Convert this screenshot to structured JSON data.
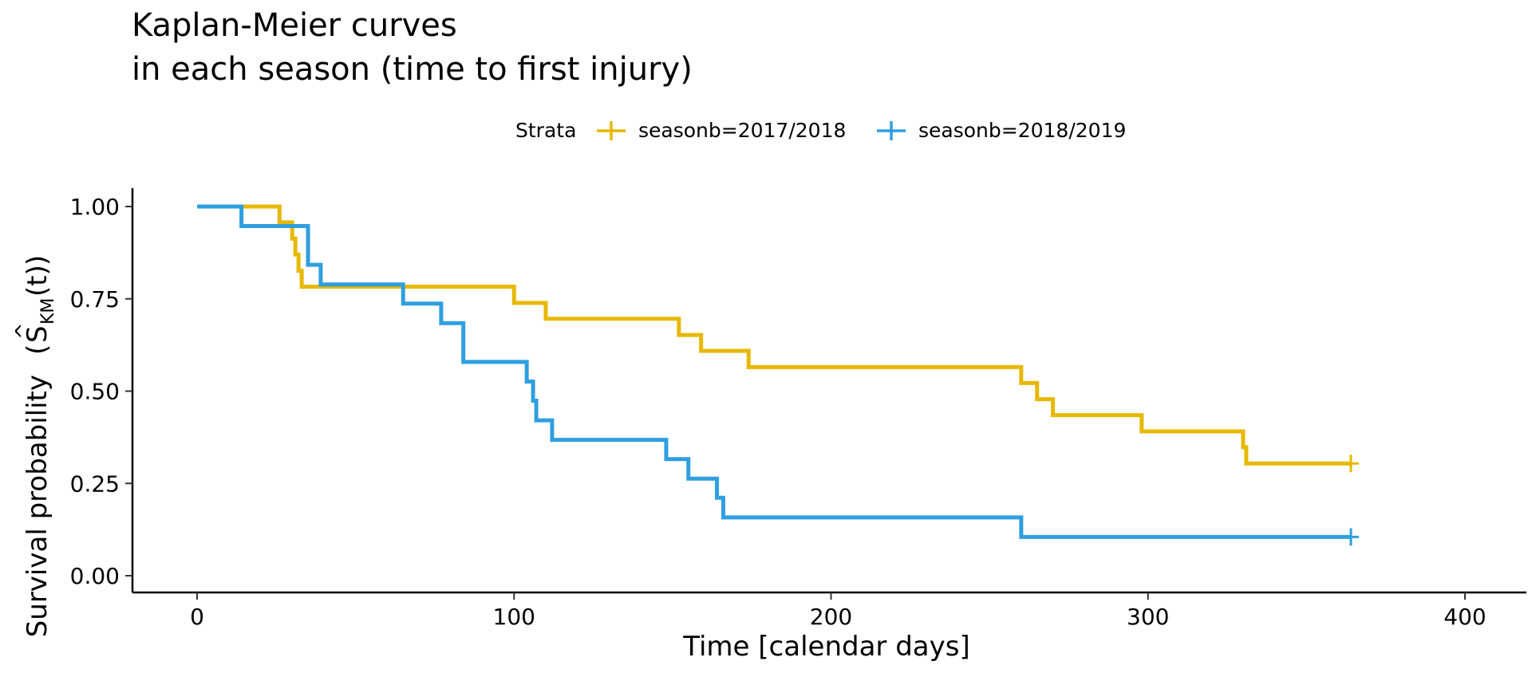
{
  "chart_data": {
    "type": "line",
    "title": "Kaplan-Meier curves",
    "subtitle": "in each season (time to first injury)",
    "xlabel": "Time [calendar days]",
    "ylabel": "Survival probability",
    "ylabel_math": {
      "symbol": "S",
      "subscript": "KM",
      "arg": "(t)"
    },
    "xlim": [
      -20,
      420
    ],
    "ylim": [
      -0.05,
      1.05
    ],
    "xticks": [
      0,
      100,
      200,
      300,
      400
    ],
    "yticks": [
      0,
      0.25,
      0.5,
      0.75,
      1.0
    ],
    "ytick_labels": [
      "0.00",
      "0.25",
      "0.50",
      "0.75",
      "1.00"
    ],
    "xtick_labels": [
      "0",
      "100",
      "200",
      "300",
      "400"
    ],
    "grid": false,
    "legend": {
      "position": "top",
      "title": "Strata",
      "entries": [
        "seasonb=2017/2018",
        "seasonb=2018/2019"
      ]
    },
    "series": [
      {
        "name": "seasonb=2017/2018",
        "color": "#E7B800",
        "step": "post",
        "x": [
          0,
          26,
          30,
          31,
          32,
          33,
          100,
          110,
          152,
          159,
          174,
          260,
          265,
          270,
          298,
          330,
          331,
          364
        ],
        "y": [
          1.0,
          0.957,
          0.913,
          0.87,
          0.826,
          0.783,
          0.739,
          0.696,
          0.652,
          0.609,
          0.565,
          0.522,
          0.478,
          0.435,
          0.391,
          0.348,
          0.304,
          0.304
        ],
        "censor": [
          [
            364,
            0.304
          ]
        ]
      },
      {
        "name": "seasonb=2018/2019",
        "color": "#2E9FDF",
        "step": "post",
        "x": [
          0,
          14,
          35,
          39,
          65,
          77,
          84,
          104,
          106,
          107,
          112,
          148,
          155,
          164,
          166,
          260,
          364
        ],
        "y": [
          1.0,
          0.947,
          0.842,
          0.789,
          0.737,
          0.684,
          0.579,
          0.526,
          0.474,
          0.421,
          0.368,
          0.316,
          0.263,
          0.211,
          0.158,
          0.105,
          0.105
        ],
        "censor": [
          [
            364,
            0.105
          ]
        ]
      }
    ]
  }
}
